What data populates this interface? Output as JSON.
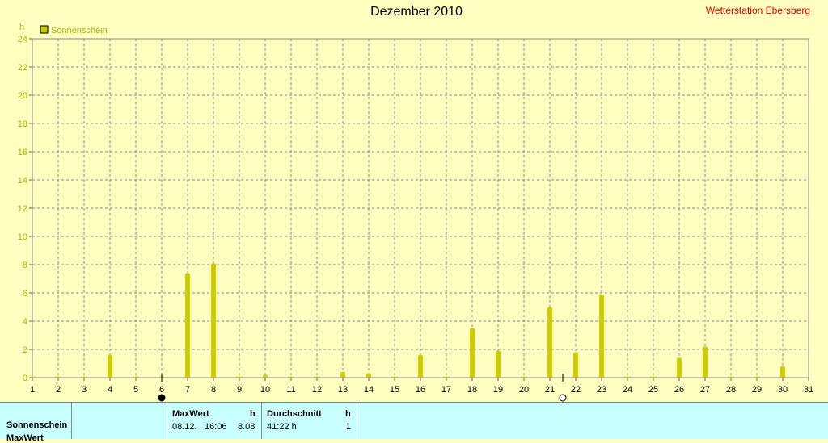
{
  "header": {
    "title": "Dezember 2010",
    "station": "Wetterstation Ebersberg"
  },
  "chart_data": {
    "type": "bar",
    "title": "Dezember 2010",
    "ylabel": "h",
    "ylim": [
      0,
      24
    ],
    "yticks": [
      0,
      2,
      4,
      6,
      8,
      10,
      12,
      14,
      16,
      18,
      20,
      22,
      24
    ],
    "xlim": [
      1,
      31
    ],
    "xticks": [
      1,
      2,
      3,
      4,
      5,
      6,
      7,
      8,
      9,
      10,
      11,
      12,
      13,
      14,
      15,
      16,
      17,
      18,
      19,
      20,
      21,
      22,
      23,
      24,
      25,
      26,
      27,
      28,
      29,
      30,
      31
    ],
    "grid": true,
    "legend": "top-left",
    "series": [
      {
        "name": "Sonnenschein",
        "color": "#cccc00",
        "x": [
          1,
          2,
          3,
          4,
          5,
          6,
          7,
          8,
          9,
          10,
          11,
          12,
          13,
          14,
          15,
          16,
          17,
          18,
          19,
          20,
          21,
          22,
          23,
          24,
          25,
          26,
          27,
          28,
          29,
          30
        ],
        "values": [
          0,
          0,
          0,
          1.6,
          0,
          0,
          7.4,
          8.1,
          0,
          0.2,
          0,
          0,
          0.4,
          0.3,
          0,
          1.6,
          0,
          3.5,
          1.9,
          0,
          5.0,
          1.8,
          5.9,
          0,
          0,
          1.4,
          2.2,
          0,
          0,
          0.8
        ]
      }
    ],
    "markers": [
      {
        "x": 6,
        "icon": "new-moon-icon"
      },
      {
        "x": 21.5,
        "icon": "full-moon-icon"
      }
    ]
  },
  "stats": {
    "row_label": "Sonnenschein",
    "row_label2": "MaxWert",
    "max_header": "MaxWert",
    "max_unit": "h",
    "max_date": "08.12.",
    "max_time": "16:06",
    "max_value": "8.08",
    "avg_header": "Durchschnitt",
    "avg_unit": "h",
    "avg_value": "41:22 h",
    "avg_count": "1"
  }
}
